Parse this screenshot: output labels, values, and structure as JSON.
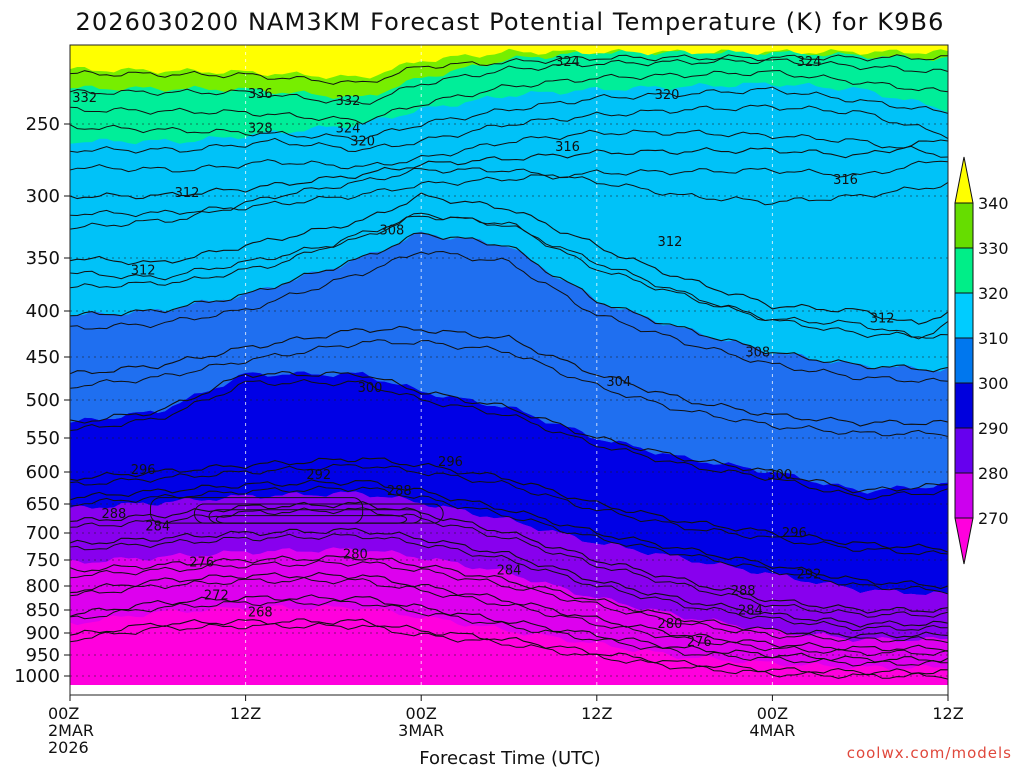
{
  "chart_data": {
    "type": "heatmap",
    "title": "2026030200 NAM3KM Forecast Potential Temperature (K) for K9B6",
    "xlabel": "Forecast Time (UTC)",
    "ylabel": "",
    "credit": "coolwx.com/models",
    "yticks": [
      250,
      300,
      350,
      400,
      450,
      500,
      550,
      600,
      650,
      700,
      750,
      800,
      850,
      900,
      950,
      1000
    ],
    "ylim": [
      200,
      1030
    ],
    "x_hours": [
      0,
      12,
      24,
      36,
      48,
      60
    ],
    "x_ticks": [
      {
        "hour": 0,
        "lines": [
          "00Z",
          "2MAR",
          "2026"
        ]
      },
      {
        "hour": 12,
        "lines": [
          "12Z"
        ]
      },
      {
        "hour": 24,
        "lines": [
          "00Z",
          "3MAR"
        ]
      },
      {
        "hour": 36,
        "lines": [
          "12Z"
        ]
      },
      {
        "hour": 48,
        "lines": [
          "00Z",
          "4MAR"
        ]
      },
      {
        "hour": 60,
        "lines": [
          "12Z"
        ]
      }
    ],
    "legend": {
      "levels": [
        340,
        330,
        320,
        310,
        300,
        290,
        280,
        270
      ],
      "colors": [
        "#ffff00",
        "#66dd00",
        "#00ee88",
        "#00ccff",
        "#0077ee",
        "#0000dd",
        "#6600ee",
        "#cc00ee",
        "#ff00dd"
      ]
    },
    "fill_colors": {
      "below_270": "#ff00dd",
      "270_280": "#dd00ee",
      "280_290": "#8800ee",
      "290_300": "#0000e6",
      "300_310": "#1f6ff0",
      "310_320": "#00c2f8",
      "320_330": "#00ee99",
      "330_340": "#77ee00",
      "above_340": "#ffff00",
      "ground": "#a0522d"
    },
    "series": [
      {
        "name": "316",
        "values": [
          [
            0,
            300
          ],
          [
            6,
            300
          ],
          [
            12,
            295
          ],
          [
            20,
            285
          ],
          [
            24,
            278
          ],
          [
            36,
            270
          ],
          [
            48,
            268
          ],
          [
            54,
            272
          ],
          [
            60,
            260
          ]
        ]
      },
      {
        "name": "312",
        "values": [
          [
            0,
            350
          ],
          [
            6,
            355
          ],
          [
            12,
            340
          ],
          [
            20,
            320
          ],
          [
            24,
            300
          ],
          [
            30,
            310
          ],
          [
            36,
            340
          ],
          [
            42,
            370
          ],
          [
            48,
            395
          ],
          [
            54,
            400
          ],
          [
            58,
            415
          ],
          [
            60,
            400
          ]
        ]
      },
      {
        "name": "308",
        "values": [
          [
            0,
            405
          ],
          [
            6,
            400
          ],
          [
            12,
            385
          ],
          [
            20,
            350
          ],
          [
            24,
            330
          ],
          [
            30,
            340
          ],
          [
            36,
            390
          ],
          [
            42,
            420
          ],
          [
            48,
            445
          ],
          [
            54,
            460
          ],
          [
            60,
            465
          ]
        ]
      },
      {
        "name": "304",
        "values": [
          [
            0,
            470
          ],
          [
            6,
            460
          ],
          [
            12,
            440
          ],
          [
            20,
            420
          ],
          [
            24,
            420
          ],
          [
            30,
            430
          ],
          [
            36,
            470
          ],
          [
            42,
            500
          ],
          [
            48,
            520
          ],
          [
            54,
            530
          ],
          [
            60,
            530
          ]
        ]
      },
      {
        "name": "300",
        "values": [
          [
            0,
            530
          ],
          [
            6,
            515
          ],
          [
            12,
            470
          ],
          [
            20,
            470
          ],
          [
            24,
            490
          ],
          [
            30,
            510
          ],
          [
            36,
            550
          ],
          [
            42,
            580
          ],
          [
            48,
            600
          ],
          [
            54,
            630
          ],
          [
            60,
            620
          ]
        ]
      },
      {
        "name": "296",
        "values": [
          [
            0,
            610
          ],
          [
            6,
            600
          ],
          [
            12,
            590
          ],
          [
            20,
            580
          ],
          [
            24,
            590
          ],
          [
            30,
            610
          ],
          [
            36,
            650
          ],
          [
            42,
            680
          ],
          [
            48,
            700
          ],
          [
            54,
            720
          ],
          [
            60,
            730
          ]
        ]
      },
      {
        "name": "292",
        "values": [
          [
            0,
            640
          ],
          [
            6,
            630
          ],
          [
            12,
            620
          ],
          [
            20,
            615
          ],
          [
            24,
            630
          ],
          [
            30,
            660
          ],
          [
            36,
            700
          ],
          [
            42,
            730
          ],
          [
            48,
            760
          ],
          [
            54,
            790
          ],
          [
            60,
            800
          ]
        ]
      },
      {
        "name": "288",
        "values": [
          [
            0,
            680
          ],
          [
            6,
            670
          ],
          [
            12,
            655
          ],
          [
            20,
            650
          ],
          [
            24,
            665
          ],
          [
            30,
            700
          ],
          [
            36,
            750
          ],
          [
            42,
            790
          ],
          [
            48,
            830
          ],
          [
            54,
            850
          ],
          [
            60,
            850
          ]
        ]
      },
      {
        "name": "284",
        "values": [
          [
            0,
            720
          ],
          [
            6,
            710
          ],
          [
            12,
            700
          ],
          [
            20,
            695
          ],
          [
            24,
            710
          ],
          [
            30,
            740
          ],
          [
            36,
            790
          ],
          [
            42,
            830
          ],
          [
            48,
            860
          ],
          [
            54,
            880
          ],
          [
            60,
            880
          ]
        ]
      },
      {
        "name": "280",
        "values": [
          [
            0,
            770
          ],
          [
            6,
            760
          ],
          [
            12,
            750
          ],
          [
            20,
            745
          ],
          [
            24,
            760
          ],
          [
            30,
            790
          ],
          [
            36,
            830
          ],
          [
            42,
            870
          ],
          [
            48,
            895
          ],
          [
            54,
            905
          ],
          [
            60,
            905
          ]
        ]
      },
      {
        "name": "276",
        "values": [
          [
            0,
            810
          ],
          [
            6,
            790
          ],
          [
            12,
            780
          ],
          [
            20,
            780
          ],
          [
            24,
            800
          ],
          [
            30,
            830
          ],
          [
            36,
            870
          ],
          [
            42,
            905
          ],
          [
            48,
            925
          ],
          [
            54,
            935
          ],
          [
            60,
            935
          ]
        ]
      },
      {
        "name": "272",
        "values": [
          [
            0,
            860
          ],
          [
            6,
            835
          ],
          [
            12,
            825
          ],
          [
            20,
            825
          ],
          [
            24,
            845
          ],
          [
            30,
            875
          ],
          [
            36,
            905
          ],
          [
            42,
            935
          ],
          [
            48,
            950
          ],
          [
            54,
            960
          ],
          [
            60,
            960
          ]
        ]
      },
      {
        "name": "268",
        "values": [
          [
            0,
            905
          ],
          [
            6,
            880
          ],
          [
            12,
            875
          ],
          [
            20,
            875
          ],
          [
            24,
            895
          ],
          [
            30,
            915
          ],
          [
            36,
            945
          ],
          [
            42,
            970
          ],
          [
            48,
            985
          ],
          [
            54,
            990
          ],
          [
            60,
            990
          ]
        ]
      }
    ],
    "labels": [
      {
        "text": "332",
        "hour": 1,
        "p": 232
      },
      {
        "text": "336",
        "hour": 13,
        "p": 229
      },
      {
        "text": "332",
        "hour": 19,
        "p": 234
      },
      {
        "text": "328",
        "hour": 13,
        "p": 253
      },
      {
        "text": "324",
        "hour": 19,
        "p": 253
      },
      {
        "text": "320",
        "hour": 20,
        "p": 262
      },
      {
        "text": "324",
        "hour": 34,
        "p": 207
      },
      {
        "text": "324",
        "hour": 50.5,
        "p": 207
      },
      {
        "text": "320",
        "hour": 40.8,
        "p": 230
      },
      {
        "text": "316",
        "hour": 34,
        "p": 266
      },
      {
        "text": "316",
        "hour": 53,
        "p": 289
      },
      {
        "text": "312",
        "hour": 8,
        "p": 298
      },
      {
        "text": "312",
        "hour": 5,
        "p": 362
      },
      {
        "text": "308",
        "hour": 22,
        "p": 328
      },
      {
        "text": "312",
        "hour": 41,
        "p": 337
      },
      {
        "text": "312",
        "hour": 55.5,
        "p": 408
      },
      {
        "text": "308",
        "hour": 47,
        "p": 445
      },
      {
        "text": "304",
        "hour": 37.5,
        "p": 479
      },
      {
        "text": "300",
        "hour": 20.5,
        "p": 486
      },
      {
        "text": "296",
        "hour": 26,
        "p": 585
      },
      {
        "text": "296",
        "hour": 5,
        "p": 597
      },
      {
        "text": "292",
        "hour": 17,
        "p": 605
      },
      {
        "text": "300",
        "hour": 48.5,
        "p": 605
      },
      {
        "text": "288",
        "hour": 22.5,
        "p": 630
      },
      {
        "text": "288",
        "hour": 3,
        "p": 667
      },
      {
        "text": "284",
        "hour": 6,
        "p": 689
      },
      {
        "text": "296",
        "hour": 49.5,
        "p": 700
      },
      {
        "text": "280",
        "hour": 19.5,
        "p": 740
      },
      {
        "text": "276",
        "hour": 9,
        "p": 755
      },
      {
        "text": "284",
        "hour": 30,
        "p": 770
      },
      {
        "text": "292",
        "hour": 50.5,
        "p": 778
      },
      {
        "text": "272",
        "hour": 10,
        "p": 820
      },
      {
        "text": "288",
        "hour": 46,
        "p": 810
      },
      {
        "text": "268",
        "hour": 13,
        "p": 855
      },
      {
        "text": "284",
        "hour": 46.5,
        "p": 851
      },
      {
        "text": "280",
        "hour": 41,
        "p": 880
      },
      {
        "text": "276",
        "hour": 43,
        "p": 920
      }
    ]
  }
}
